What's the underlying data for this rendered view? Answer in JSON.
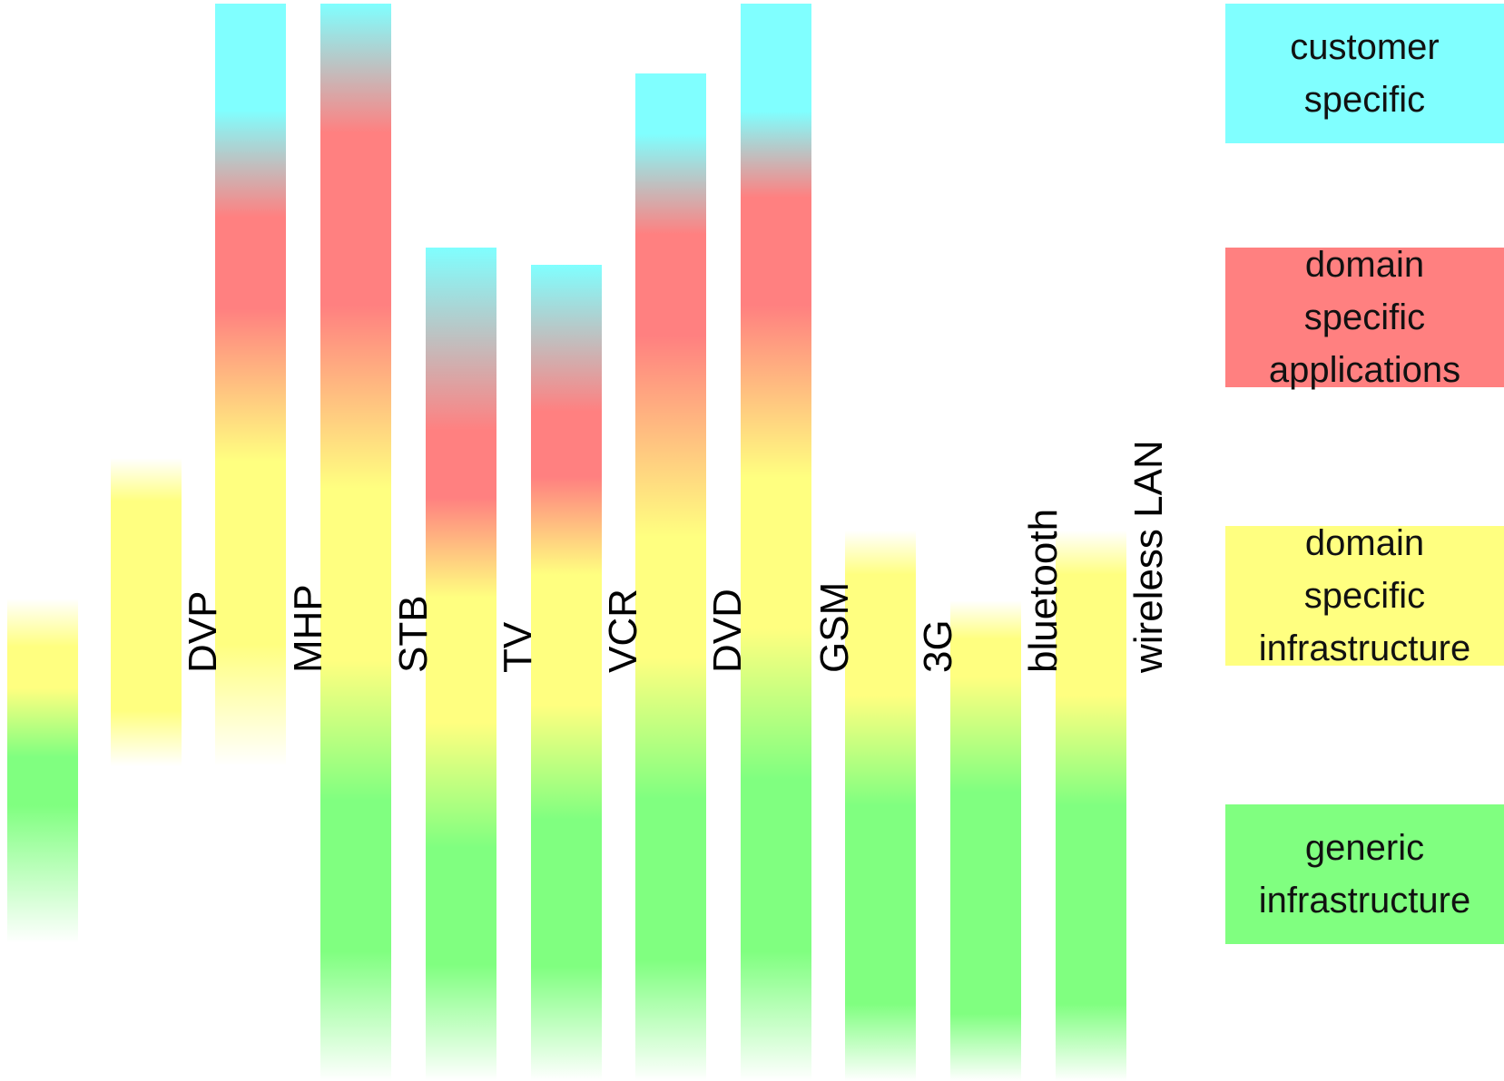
{
  "bars": [
    {
      "id": "bar-1",
      "label": "",
      "stops": [
        {
          "color": "#ffff80",
          "a": 0.0
        },
        {
          "color": "#ffff80",
          "a": 1
        },
        {
          "color": "#80ff80",
          "a": 1
        },
        {
          "color": "#80ff80",
          "a": 0
        }
      ]
    },
    {
      "id": "bar-dvp",
      "label": "DVP"
    },
    {
      "id": "bar-mhp",
      "label": "MHP"
    },
    {
      "id": "bar-str",
      "label": "STB"
    },
    {
      "id": "bar-tv",
      "label": "TV"
    },
    {
      "id": "bar-vcr",
      "label": "VCR"
    },
    {
      "id": "bar-dvd",
      "label": "DVD"
    },
    {
      "id": "bar-gsm",
      "label": "GSM"
    },
    {
      "id": "bar-3g",
      "label": "3G"
    },
    {
      "id": "bar-bluetooth",
      "label": "bluetooth"
    },
    {
      "id": "bar-wlan",
      "label": "wireless LAN"
    }
  ],
  "legend": [
    {
      "id": "customer-specific",
      "lines": [
        "customer",
        "specific"
      ],
      "color": "#80ffff"
    },
    {
      "id": "domain-specific-applications",
      "lines": [
        "domain",
        "specific",
        "applications"
      ],
      "color": "#ff8080"
    },
    {
      "id": "domain-specific-infrastructure",
      "lines": [
        "domain",
        "specific",
        "infrastructure"
      ],
      "color": "#ffff80"
    },
    {
      "id": "generic-infrastructure",
      "lines": [
        "generic",
        "infrastructure"
      ],
      "color": "#80ff80"
    }
  ],
  "colors": {
    "customer": "#80ffff",
    "applications": "#ff8080",
    "domain_infra": "#ffff80",
    "generic_infra": "#80ff80"
  }
}
